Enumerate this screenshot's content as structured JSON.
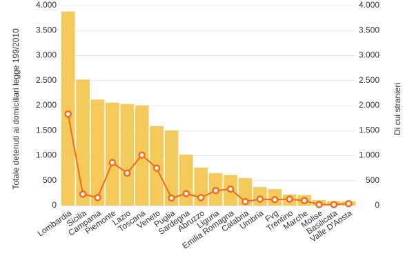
{
  "chart_data": {
    "type": "bar-line",
    "y_label": "Totale detenuti ai domiciliari legge 199/2010",
    "y2_label": "Di cui stranieri",
    "categories": [
      "Lombardia",
      "Sicilia",
      "Campania",
      "Piemonte",
      "Lazio",
      "Toscana",
      "Veneto",
      "Puglia",
      "Sardegna",
      "Abruzzo",
      "Liguria",
      "Emilia Romagna",
      "Calabria",
      "Umbria",
      "Fvg",
      "Trentino",
      "Marche",
      "Molise",
      "Basilicata",
      "Valle D'Aosta"
    ],
    "series": [
      {
        "name": "Totale detenuti ai domiciliari legge 199/2010",
        "kind": "bar",
        "color": "#f4ca5c",
        "values": [
          3880,
          2520,
          2120,
          2060,
          2030,
          2000,
          1590,
          1500,
          1020,
          760,
          650,
          610,
          550,
          370,
          330,
          220,
          210,
          110,
          90,
          90
        ]
      },
      {
        "name": "Di cui stranieri",
        "kind": "line",
        "axis": "y2",
        "color": "#f26a1b",
        "values": [
          1830,
          230,
          160,
          860,
          650,
          1010,
          750,
          150,
          240,
          160,
          300,
          330,
          80,
          130,
          120,
          130,
          100,
          20,
          20,
          40
        ]
      }
    ],
    "ylim": [
      0,
      4000
    ],
    "yticks": [
      0,
      500,
      {
        "value": 1000,
        "label": "1.000"
      },
      {
        "value": 1500,
        "label": "1.500"
      },
      {
        "value": 2000,
        "label": "2.000"
      },
      {
        "value": 2500,
        "label": "2.500"
      },
      {
        "value": 3000,
        "label": "3.000"
      },
      {
        "value": 3500,
        "label": "3.500"
      },
      {
        "value": 4000,
        "label": "4.000"
      }
    ],
    "y2lim": [
      0,
      4000
    ],
    "y2ticks": [
      0,
      500,
      {
        "value": 1000,
        "label": "1.000"
      },
      {
        "value": 1500,
        "label": "1.500"
      },
      {
        "value": 2000,
        "label": "2.000"
      },
      {
        "value": 2500,
        "label": "2.500"
      },
      {
        "value": 3000,
        "label": "3.000"
      },
      {
        "value": 3500,
        "label": "3.500"
      },
      {
        "value": 4000,
        "label": "4.000"
      }
    ],
    "grid": true
  }
}
